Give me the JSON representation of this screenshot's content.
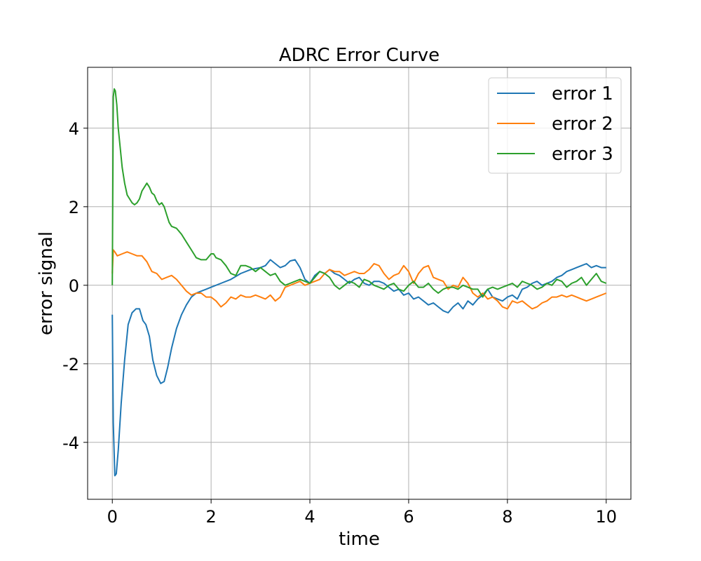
{
  "chart_data": {
    "type": "line",
    "title": "ADRC Error Curve",
    "xlabel": "time",
    "ylabel": "error signal",
    "xlim": [
      -0.5,
      10.5
    ],
    "ylim": [
      -5.45,
      5.55
    ],
    "xticks": [
      0,
      2,
      4,
      6,
      8,
      10
    ],
    "yticks": [
      4,
      2,
      0,
      -2,
      -4
    ],
    "xtick_labels": [
      "0",
      "2",
      "4",
      "6",
      "8",
      "10"
    ],
    "ytick_labels": [
      "4",
      "2",
      "0",
      "-2",
      "-4"
    ],
    "grid": true,
    "legend_position": "top-right",
    "series": [
      {
        "name": "error 1",
        "color": "#1f77b4",
        "x": [
          0,
          0.02,
          0.05,
          0.08,
          0.12,
          0.18,
          0.25,
          0.32,
          0.4,
          0.48,
          0.55,
          0.62,
          0.68,
          0.75,
          0.82,
          0.9,
          0.98,
          1.05,
          1.12,
          1.2,
          1.3,
          1.4,
          1.5,
          1.6,
          1.7,
          1.8,
          1.9,
          2.0,
          2.2,
          2.4,
          2.6,
          2.8,
          3.0,
          3.1,
          3.2,
          3.3,
          3.4,
          3.5,
          3.6,
          3.7,
          3.8,
          3.9,
          4.0,
          4.1,
          4.2,
          4.3,
          4.4,
          4.5,
          4.6,
          4.7,
          4.8,
          4.9,
          5.0,
          5.1,
          5.2,
          5.3,
          5.4,
          5.5,
          5.6,
          5.7,
          5.8,
          5.9,
          6.0,
          6.1,
          6.2,
          6.3,
          6.4,
          6.5,
          6.6,
          6.7,
          6.8,
          6.9,
          7.0,
          7.1,
          7.2,
          7.3,
          7.4,
          7.5,
          7.6,
          7.7,
          7.8,
          7.9,
          8.0,
          8.1,
          8.2,
          8.3,
          8.4,
          8.5,
          8.6,
          8.7,
          8.8,
          8.9,
          9.0,
          9.1,
          9.2,
          9.3,
          9.4,
          9.5,
          9.6,
          9.7,
          9.8,
          9.9,
          10.0
        ],
        "y": [
          -0.75,
          -3.5,
          -4.85,
          -4.8,
          -4.2,
          -3.0,
          -1.9,
          -1.0,
          -0.7,
          -0.6,
          -0.6,
          -0.9,
          -1.0,
          -1.3,
          -1.9,
          -2.3,
          -2.5,
          -2.45,
          -2.1,
          -1.6,
          -1.1,
          -0.75,
          -0.5,
          -0.3,
          -0.2,
          -0.15,
          -0.1,
          -0.05,
          0.05,
          0.15,
          0.3,
          0.4,
          0.45,
          0.5,
          0.65,
          0.55,
          0.45,
          0.5,
          0.62,
          0.65,
          0.45,
          0.15,
          0.05,
          0.25,
          0.35,
          0.3,
          0.4,
          0.3,
          0.25,
          0.15,
          0.05,
          0.15,
          0.2,
          0.05,
          0.0,
          0.1,
          0.1,
          0.05,
          -0.05,
          -0.15,
          -0.1,
          -0.25,
          -0.2,
          -0.35,
          -0.3,
          -0.4,
          -0.5,
          -0.45,
          -0.55,
          -0.65,
          -0.7,
          -0.55,
          -0.45,
          -0.6,
          -0.4,
          -0.5,
          -0.35,
          -0.25,
          -0.1,
          -0.3,
          -0.35,
          -0.4,
          -0.3,
          -0.25,
          -0.35,
          -0.1,
          -0.05,
          0.05,
          0.1,
          0.0,
          0.05,
          0.1,
          0.2,
          0.25,
          0.35,
          0.4,
          0.45,
          0.5,
          0.55,
          0.45,
          0.5,
          0.45,
          0.45
        ]
      },
      {
        "name": "error 2",
        "color": "#ff7f0e",
        "x": [
          0,
          0.02,
          0.05,
          0.1,
          0.2,
          0.3,
          0.4,
          0.5,
          0.6,
          0.7,
          0.8,
          0.9,
          1.0,
          1.1,
          1.2,
          1.3,
          1.4,
          1.5,
          1.6,
          1.7,
          1.8,
          1.9,
          2.0,
          2.1,
          2.2,
          2.3,
          2.4,
          2.5,
          2.6,
          2.7,
          2.8,
          2.9,
          3.0,
          3.1,
          3.2,
          3.3,
          3.4,
          3.5,
          3.6,
          3.7,
          3.8,
          3.9,
          4.0,
          4.1,
          4.2,
          4.3,
          4.4,
          4.5,
          4.6,
          4.7,
          4.8,
          4.9,
          5.0,
          5.1,
          5.2,
          5.3,
          5.4,
          5.5,
          5.6,
          5.7,
          5.8,
          5.9,
          6.0,
          6.1,
          6.2,
          6.3,
          6.4,
          6.5,
          6.6,
          6.7,
          6.8,
          6.9,
          7.0,
          7.1,
          7.2,
          7.3,
          7.4,
          7.5,
          7.6,
          7.7,
          7.8,
          7.9,
          8.0,
          8.1,
          8.2,
          8.3,
          8.4,
          8.5,
          8.6,
          8.7,
          8.8,
          8.9,
          9.0,
          9.1,
          9.2,
          9.3,
          9.4,
          9.5,
          9.6,
          9.7,
          9.8,
          9.9,
          10.0
        ],
        "y": [
          0.3,
          0.9,
          0.85,
          0.75,
          0.8,
          0.85,
          0.8,
          0.75,
          0.75,
          0.6,
          0.35,
          0.3,
          0.15,
          0.2,
          0.25,
          0.15,
          0.0,
          -0.15,
          -0.25,
          -0.2,
          -0.2,
          -0.3,
          -0.3,
          -0.4,
          -0.55,
          -0.45,
          -0.3,
          -0.35,
          -0.25,
          -0.3,
          -0.3,
          -0.25,
          -0.3,
          -0.35,
          -0.25,
          -0.4,
          -0.3,
          -0.05,
          0.0,
          0.05,
          0.1,
          0.0,
          0.05,
          0.1,
          0.15,
          0.3,
          0.4,
          0.35,
          0.35,
          0.25,
          0.3,
          0.35,
          0.3,
          0.3,
          0.4,
          0.55,
          0.5,
          0.3,
          0.15,
          0.25,
          0.3,
          0.5,
          0.35,
          0.05,
          0.3,
          0.45,
          0.5,
          0.2,
          0.15,
          0.1,
          -0.1,
          0.0,
          -0.05,
          0.2,
          0.05,
          -0.2,
          -0.3,
          -0.2,
          -0.35,
          -0.3,
          -0.4,
          -0.55,
          -0.6,
          -0.4,
          -0.45,
          -0.4,
          -0.5,
          -0.6,
          -0.55,
          -0.45,
          -0.4,
          -0.3,
          -0.3,
          -0.25,
          -0.3,
          -0.25,
          -0.3,
          -0.35,
          -0.4,
          -0.35,
          -0.3,
          -0.25,
          -0.2
        ]
      },
      {
        "name": "error 3",
        "color": "#2ca02c",
        "x": [
          0,
          0.02,
          0.04,
          0.06,
          0.09,
          0.12,
          0.16,
          0.2,
          0.25,
          0.3,
          0.35,
          0.4,
          0.45,
          0.5,
          0.55,
          0.6,
          0.65,
          0.7,
          0.75,
          0.8,
          0.85,
          0.9,
          0.95,
          1.0,
          1.05,
          1.1,
          1.15,
          1.2,
          1.3,
          1.4,
          1.5,
          1.6,
          1.7,
          1.8,
          1.9,
          2.0,
          2.05,
          2.1,
          2.2,
          2.3,
          2.4,
          2.5,
          2.6,
          2.7,
          2.8,
          2.9,
          3.0,
          3.1,
          3.2,
          3.3,
          3.4,
          3.5,
          3.6,
          3.7,
          3.8,
          3.9,
          4.0,
          4.1,
          4.2,
          4.3,
          4.4,
          4.5,
          4.6,
          4.7,
          4.8,
          4.9,
          5.0,
          5.1,
          5.2,
          5.3,
          5.4,
          5.5,
          5.6,
          5.7,
          5.8,
          5.9,
          6.0,
          6.1,
          6.2,
          6.3,
          6.4,
          6.5,
          6.6,
          6.7,
          6.8,
          6.9,
          7.0,
          7.1,
          7.2,
          7.3,
          7.4,
          7.5,
          7.6,
          7.7,
          7.8,
          7.9,
          8.0,
          8.1,
          8.2,
          8.3,
          8.4,
          8.5,
          8.6,
          8.7,
          8.8,
          8.9,
          9.0,
          9.1,
          9.2,
          9.3,
          9.4,
          9.5,
          9.6,
          9.7,
          9.8,
          9.9,
          10.0
        ],
        "y": [
          0.0,
          4.8,
          5.0,
          4.95,
          4.6,
          4.0,
          3.5,
          3.0,
          2.6,
          2.3,
          2.2,
          2.1,
          2.05,
          2.1,
          2.2,
          2.4,
          2.5,
          2.6,
          2.5,
          2.35,
          2.3,
          2.15,
          2.05,
          2.1,
          2.0,
          1.8,
          1.6,
          1.5,
          1.45,
          1.3,
          1.1,
          0.9,
          0.7,
          0.65,
          0.65,
          0.8,
          0.8,
          0.7,
          0.65,
          0.5,
          0.3,
          0.25,
          0.5,
          0.5,
          0.45,
          0.35,
          0.45,
          0.35,
          0.25,
          0.3,
          0.1,
          0.0,
          0.05,
          0.1,
          0.15,
          0.1,
          0.05,
          0.2,
          0.35,
          0.3,
          0.2,
          0.0,
          -0.1,
          0.0,
          0.1,
          0.05,
          -0.05,
          0.15,
          0.1,
          0.0,
          -0.05,
          -0.1,
          0.0,
          0.05,
          -0.1,
          -0.15,
          0.0,
          0.1,
          -0.05,
          -0.05,
          0.05,
          -0.1,
          -0.2,
          -0.1,
          -0.05,
          -0.05,
          -0.1,
          0.0,
          -0.05,
          -0.1,
          -0.1,
          -0.3,
          -0.1,
          -0.05,
          -0.1,
          -0.05,
          0.0,
          0.05,
          -0.05,
          0.1,
          0.05,
          0.0,
          -0.1,
          -0.05,
          0.05,
          0.0,
          0.15,
          0.1,
          -0.05,
          0.05,
          0.1,
          0.2,
          0.0,
          0.15,
          0.3,
          0.1,
          0.05
        ]
      }
    ]
  }
}
